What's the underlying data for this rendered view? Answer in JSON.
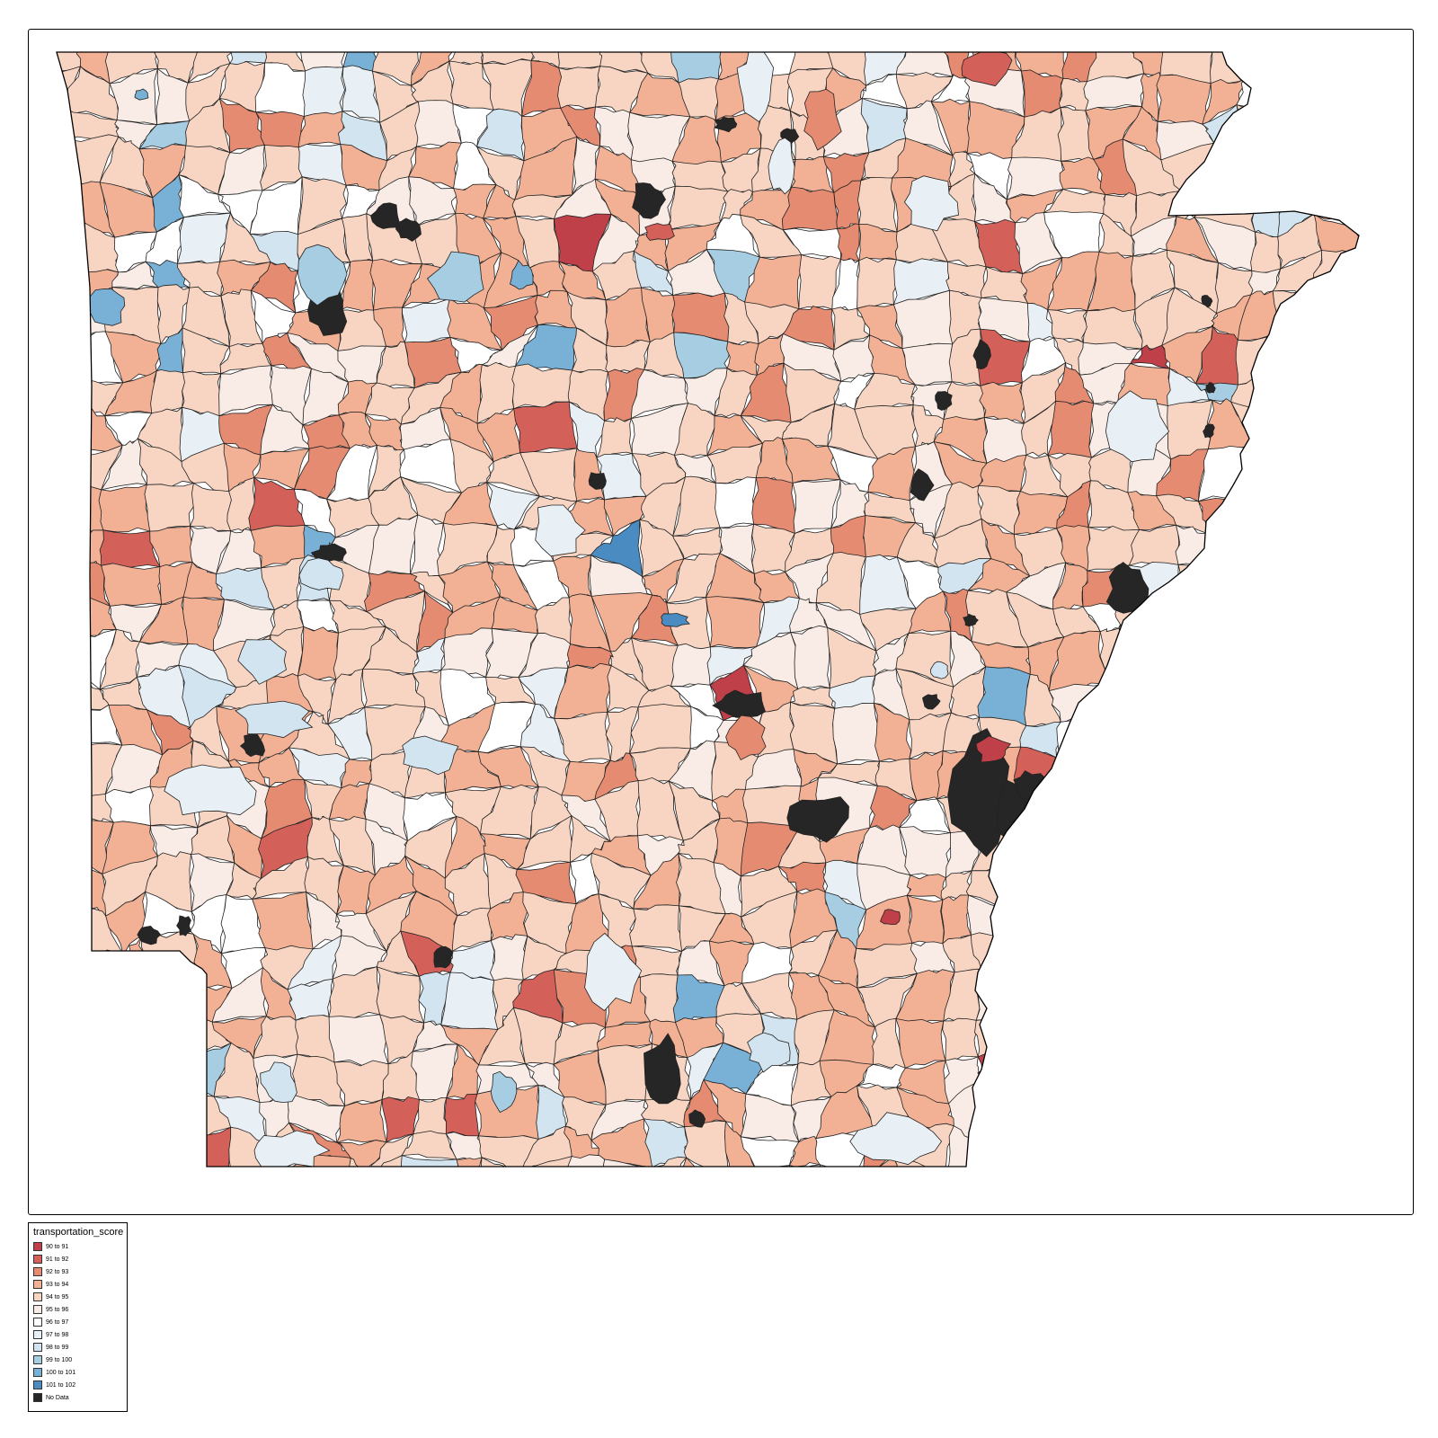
{
  "map": {
    "region": "Arkansas",
    "unit": "ZIP code tabulation areas",
    "state_outline_stroke": "#000000",
    "boundary_stroke": "#222222",
    "no_data_color": "#262626"
  },
  "legend": {
    "title": "transportation_score",
    "items": [
      {
        "label": "90 to 91",
        "color": "#c0404a"
      },
      {
        "label": "91 to 92",
        "color": "#d4605a"
      },
      {
        "label": "92 to 93",
        "color": "#e48b72"
      },
      {
        "label": "93 to 94",
        "color": "#f2b195"
      },
      {
        "label": "94 to 95",
        "color": "#f7d5c2"
      },
      {
        "label": "95 to 96",
        "color": "#f9ebe5"
      },
      {
        "label": "96 to 97",
        "color": "#ffffff"
      },
      {
        "label": "97 to 98",
        "color": "#e9f0f5"
      },
      {
        "label": "98 to 99",
        "color": "#d2e4f0"
      },
      {
        "label": "99 to 100",
        "color": "#a7cde3"
      },
      {
        "label": "100 to 101",
        "color": "#78b0d6"
      },
      {
        "label": "101 to 102",
        "color": "#4a8bc2"
      },
      {
        "label": "No Data",
        "color": "#262626"
      }
    ]
  }
}
